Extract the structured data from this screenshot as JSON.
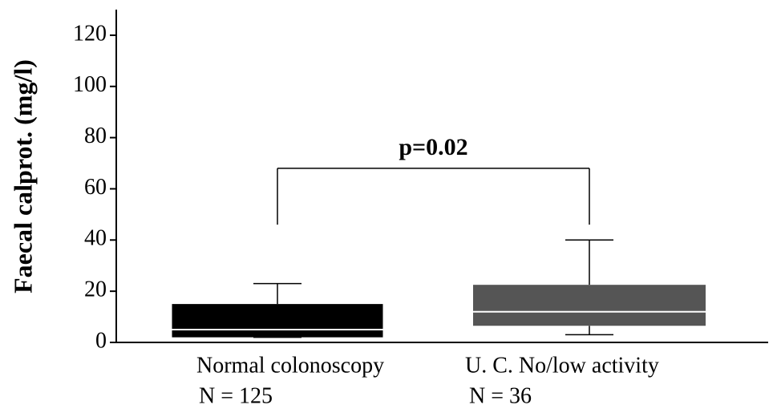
{
  "chart_data": {
    "type": "box",
    "y_label": "Faecal calprot. (mg/l)",
    "categories": [
      "Normal colonoscopy",
      "U. C. No/low activity"
    ],
    "n_labels": [
      "N = 125",
      "N = 36"
    ],
    "boxes": [
      {
        "min": 2,
        "q1": 2,
        "median": 5,
        "q3": 15,
        "max": 23,
        "color": "#000000"
      },
      {
        "min": 3,
        "q1": 6.5,
        "median": 12,
        "q3": 22.5,
        "max": 40,
        "color": "#555555"
      }
    ],
    "median_color": "#ffffff",
    "bracket": {
      "y": 68,
      "left_end": 46,
      "right_end": 46
    },
    "annotation": "p=0.02",
    "ylim": [
      0,
      130
    ],
    "yticks": [
      0,
      20,
      40,
      60,
      80,
      100,
      120
    ]
  }
}
